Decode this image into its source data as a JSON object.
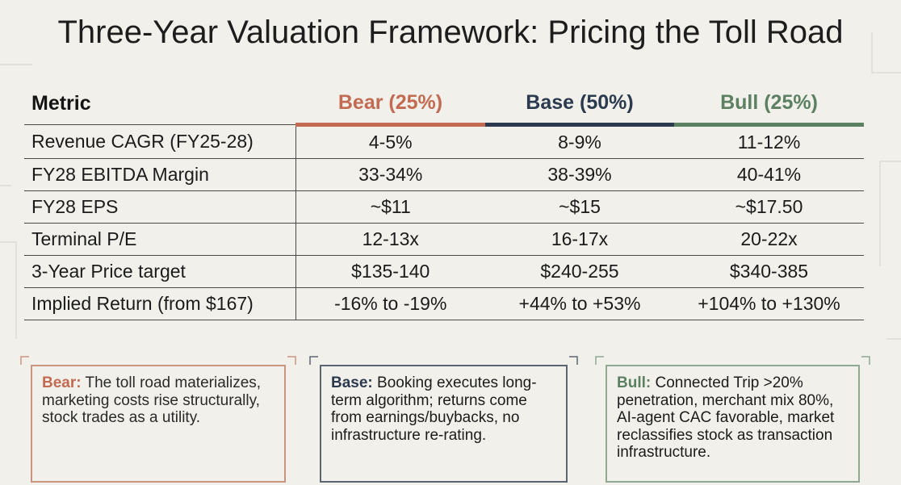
{
  "title": "Three-Year Valuation Framework: Pricing the Toll Road",
  "table": {
    "headers": [
      "Metric",
      "Bear (25%)",
      "Base (50%)",
      "Bull (25%)"
    ],
    "rows": [
      [
        "Revenue CAGR (FY25-28)",
        "4-5%",
        "8-9%",
        "11-12%"
      ],
      [
        "FY28 EBITDA Margin",
        "33-34%",
        "38-39%",
        "40-41%"
      ],
      [
        "FY28 EPS",
        "~$11",
        "~$15",
        "~$17.50"
      ],
      [
        "Terminal P/E",
        "12-13x",
        "16-17x",
        "20-22x"
      ],
      [
        "3-Year Price target",
        "$135-140",
        "$240-255",
        "$340-385"
      ],
      [
        "Implied Return (from $167)",
        "-16% to -19%",
        "+44% to +53%",
        "+104% to +130%"
      ]
    ]
  },
  "scenarios": {
    "bear": {
      "label": "Bear:",
      "text": " The toll road materializes, marketing costs rise structurally, stock trades as a utility."
    },
    "base": {
      "label": "Base:",
      "text": " Booking executes long-term algorithm; returns come from earnings/buybacks, no infrastructure re-rating."
    },
    "bull": {
      "label": "Bull:",
      "text": " Connected Trip >20% penetration, merchant mix 80%, AI-agent CAC favorable, market reclassifies stock as transaction infrastructure."
    }
  },
  "colors": {
    "bear": "#c26b52",
    "base": "#2b3a4e",
    "bull": "#5c8062",
    "background": "#f1f0eb"
  }
}
